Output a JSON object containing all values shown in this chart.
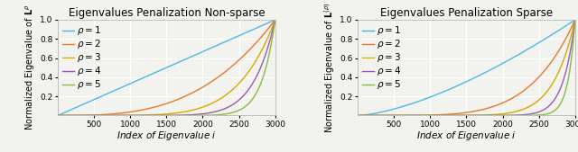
{
  "title_left": "Eigenvalues Penalization Non-sparse",
  "title_right": "Eigenvalues Penalization Sparse",
  "xlabel": "Index of Eigenvalue $i$",
  "ylabel_left": "Normalized Eigenvalue of $\\mathbf{L}^\\rho$",
  "ylabel_right": "Normalized Eigenvalue of $\\mathbf{L}^{(\\rho)}$",
  "n_points": 3000,
  "rho_values": [
    1,
    2,
    3,
    4,
    5
  ],
  "colors": [
    "#4db8e8",
    "#e8782a",
    "#d4aa00",
    "#9b59b6",
    "#88bb44"
  ],
  "xlim": [
    0,
    3000
  ],
  "ylim": [
    0,
    1
  ],
  "xticks": [
    500,
    1000,
    1500,
    2000,
    2500,
    3000
  ],
  "yticks": [
    0.2,
    0.4,
    0.6,
    0.8,
    1.0
  ],
  "background_color": "#f2f2ee",
  "grid_color": "#ffffff",
  "title_fontsize": 8.5,
  "label_fontsize": 7.5,
  "tick_fontsize": 6.5,
  "legend_fontsize": 7.5,
  "linewidth": 1.0,
  "nonsparse_exponents": [
    1.0,
    3.0,
    6.0,
    10.0,
    16.0
  ],
  "sparse_exponents": [
    1.5,
    5.0,
    10.0,
    18.0,
    30.0
  ]
}
